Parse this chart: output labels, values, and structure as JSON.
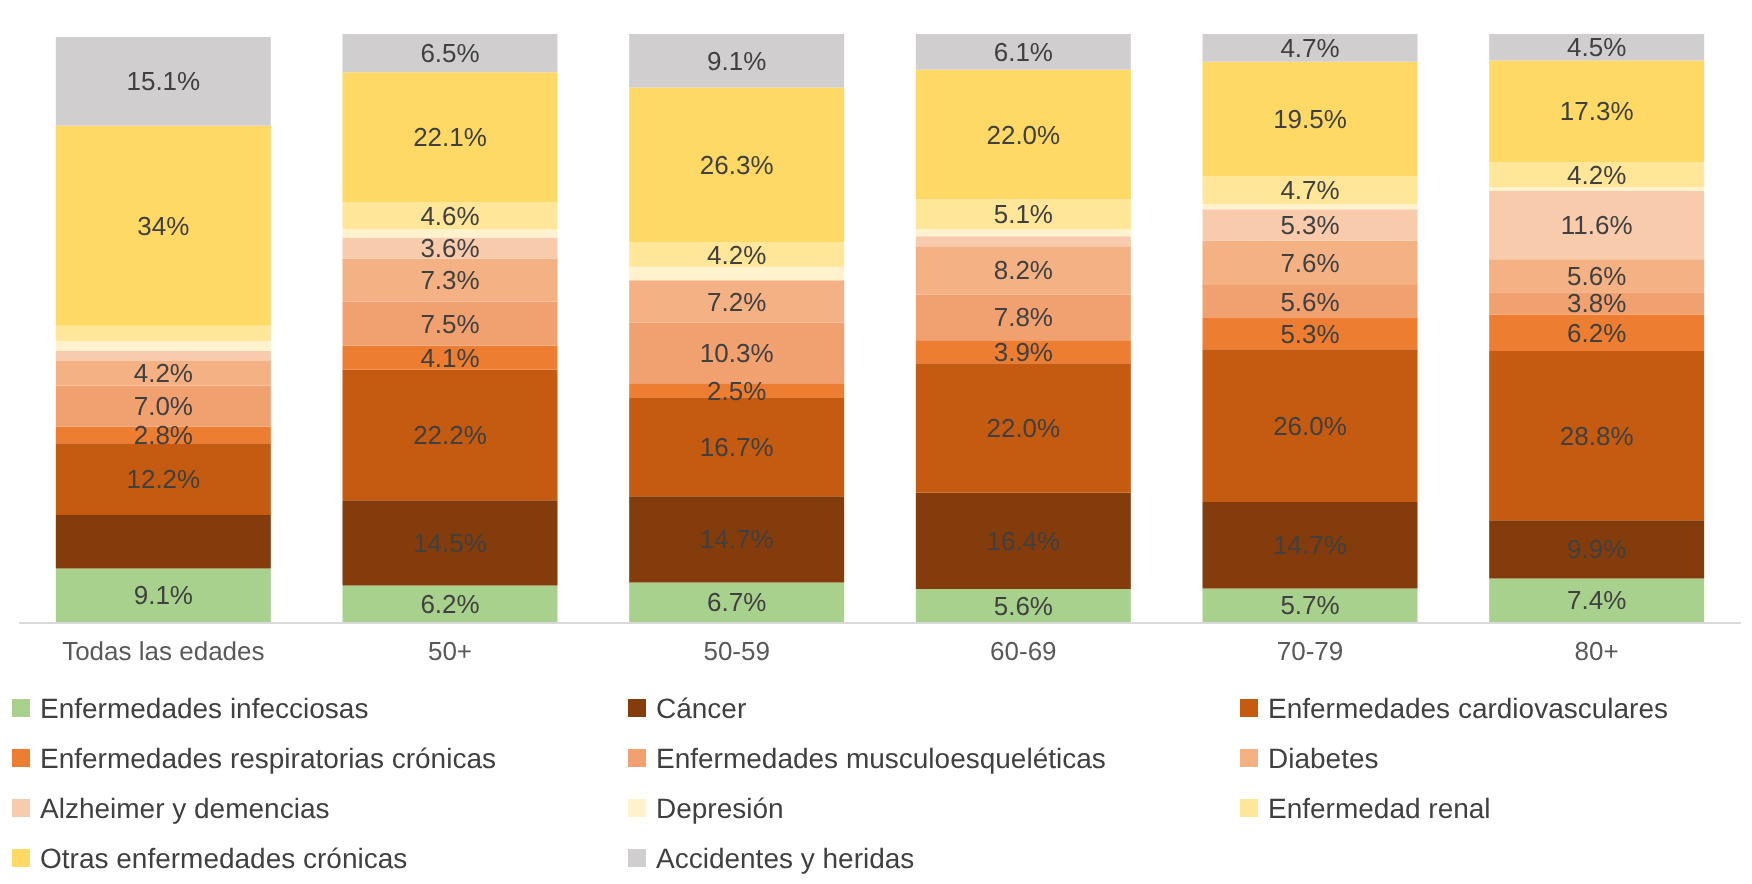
{
  "chart_data": {
    "type": "bar",
    "stacked": true,
    "legend": "bottom",
    "grid": false,
    "tick_labels": "x",
    "categories": [
      "Todas las edades",
      "50+",
      "50-59",
      "60-69",
      "70-79",
      "80+"
    ],
    "series": [
      {
        "name": "Enfermedades infecciosas",
        "color": "#a9d18e",
        "values": [
          9.1,
          6.2,
          6.7,
          5.6,
          5.7,
          7.4
        ],
        "value_labels": [
          "9.1%",
          "6.2%",
          "6.7%",
          "5.6%",
          "5.7%",
          "7.4%"
        ]
      },
      {
        "name": "Cáncer",
        "color": "#843c0c",
        "values": [
          9.1,
          14.5,
          14.7,
          16.4,
          14.7,
          9.9
        ],
        "value_labels": [
          null,
          "14.5%",
          "14.7%",
          "16.4%",
          "14.7%",
          "9.9%"
        ]
      },
      {
        "name": "Enfermedades cardiovasculares",
        "color": "#c55a11",
        "values": [
          12.2,
          22.2,
          16.7,
          22.0,
          26.0,
          28.8
        ],
        "value_labels": [
          "12.2%",
          "22.2%",
          "16.7%",
          "22.0%",
          "26.0%",
          "28.8%"
        ]
      },
      {
        "name": "Enfermedades respiratorias crónicas",
        "color": "#ed7d31",
        "values": [
          2.8,
          4.1,
          2.5,
          3.9,
          5.3,
          6.2
        ],
        "value_labels": [
          "2.8%",
          "4.1%",
          "2.5%",
          "3.9%",
          "5.3%",
          "6.2%"
        ]
      },
      {
        "name": "Enfermedades musculoesqueléticas",
        "color": "#f1a06f",
        "values": [
          7.0,
          7.5,
          10.3,
          7.8,
          5.6,
          3.8
        ],
        "value_labels": [
          "7.0%",
          "7.5%",
          "10.3%",
          "7.8%",
          "5.6%",
          "3.8%"
        ]
      },
      {
        "name": "Diabetes",
        "color": "#f4b183",
        "values": [
          4.2,
          7.3,
          7.2,
          8.2,
          7.6,
          5.6
        ],
        "value_labels": [
          "4.2%",
          "7.3%",
          "7.2%",
          "8.2%",
          "7.6%",
          "5.6%"
        ]
      },
      {
        "name": "Alzheimer y demencias",
        "color": "#f8cbad",
        "values": [
          1.7,
          3.6,
          null,
          1.7,
          5.3,
          11.6
        ],
        "value_labels": [
          null,
          "3.6%",
          null,
          null,
          "5.3%",
          "11.6%"
        ]
      },
      {
        "name": "Depresión",
        "color": "#fff2cc",
        "values": [
          1.7,
          1.4,
          2.3,
          1.2,
          0.9,
          0.7
        ],
        "value_labels": [
          null,
          null,
          null,
          null,
          null,
          null
        ]
      },
      {
        "name": "Enfermedad renal",
        "color": "#ffe699",
        "values": [
          2.6,
          4.6,
          4.2,
          5.1,
          4.7,
          4.2
        ],
        "value_labels": [
          null,
          "4.6%",
          "4.2%",
          "5.1%",
          "4.7%",
          "4.2%"
        ]
      },
      {
        "name": "Otras enfermedades crónicas",
        "color": "#ffd966",
        "values": [
          34,
          22.1,
          26.3,
          22.0,
          19.5,
          17.3
        ],
        "value_labels": [
          "34%",
          "22.1%",
          "26.3%",
          "22.0%",
          "19.5%",
          "17.3%"
        ]
      },
      {
        "name": "Accidentes y heridas",
        "color": "#d0cece",
        "values": [
          15.1,
          6.5,
          9.1,
          6.1,
          4.7,
          4.5
        ],
        "value_labels": [
          "15.1%",
          "6.5%",
          "9.1%",
          "6.1%",
          "4.7%",
          "4.5%"
        ]
      }
    ]
  }
}
